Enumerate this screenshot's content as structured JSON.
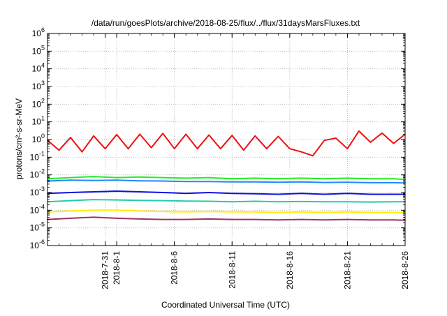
{
  "chart_data": {
    "type": "line",
    "title": "/data/run/goesPlots/archive/2018-08-25/flux/../flux/31daysMarsFluxes.txt",
    "xlabel": "Coordinated Universal Time (UTC)",
    "ylabel": "protons/cm²-s-sr-MeV",
    "y_scale": "log",
    "ylim": [
      1e-06,
      1000000.0
    ],
    "xlim": [
      "2018-07-26",
      "2018-08-26"
    ],
    "grid": true,
    "y_ticks": [
      {
        "base": "10",
        "exp": "-6"
      },
      {
        "base": "10",
        "exp": "-5"
      },
      {
        "base": "10",
        "exp": "-4"
      },
      {
        "base": "10",
        "exp": "-3"
      },
      {
        "base": "10",
        "exp": "-2"
      },
      {
        "base": "10",
        "exp": "-1"
      },
      {
        "base": "10",
        "exp": "0"
      },
      {
        "base": "10",
        "exp": "1"
      },
      {
        "base": "10",
        "exp": "2"
      },
      {
        "base": "10",
        "exp": "3"
      },
      {
        "base": "10",
        "exp": "4"
      },
      {
        "base": "10",
        "exp": "5"
      },
      {
        "base": "10",
        "exp": "6"
      }
    ],
    "x_ticks": [
      {
        "date": "2018-07-31",
        "label": "2018-7-31"
      },
      {
        "date": "2018-08-01",
        "label": "2018-8-1"
      },
      {
        "date": "2018-08-06",
        "label": "2018-8-6"
      },
      {
        "date": "2018-08-11",
        "label": "2018-8-11"
      },
      {
        "date": "2018-08-16",
        "label": "2018-8-16"
      },
      {
        "date": "2018-08-21",
        "label": "2018-8-21"
      },
      {
        "date": "2018-08-26",
        "label": "2018-8-26"
      }
    ],
    "series": [
      {
        "color": "#ee1111",
        "x": [
          "2018-07-26",
          "2018-07-27",
          "2018-07-28",
          "2018-07-29",
          "2018-07-30",
          "2018-07-31",
          "2018-08-01",
          "2018-08-02",
          "2018-08-03",
          "2018-08-04",
          "2018-08-05",
          "2018-08-06",
          "2018-08-07",
          "2018-08-08",
          "2018-08-09",
          "2018-08-10",
          "2018-08-11",
          "2018-08-12",
          "2018-08-13",
          "2018-08-14",
          "2018-08-15",
          "2018-08-16",
          "2018-08-17",
          "2018-08-18",
          "2018-08-19",
          "2018-08-20",
          "2018-08-21",
          "2018-08-22",
          "2018-08-23",
          "2018-08-24",
          "2018-08-25",
          "2018-08-26"
        ],
        "values": [
          0.9,
          0.25,
          1.3,
          0.2,
          1.6,
          0.3,
          1.9,
          0.3,
          2.0,
          0.35,
          2.2,
          0.3,
          2.0,
          0.3,
          1.8,
          0.3,
          1.7,
          0.25,
          1.6,
          0.3,
          1.5,
          0.3,
          0.2,
          0.12,
          0.9,
          1.2,
          0.3,
          3.0,
          0.7,
          2.3,
          0.6,
          2.0
        ]
      },
      {
        "color": "#22ee22",
        "x": [
          "2018-07-26",
          "2018-07-28",
          "2018-07-30",
          "2018-08-01",
          "2018-08-03",
          "2018-08-05",
          "2018-08-07",
          "2018-08-09",
          "2018-08-11",
          "2018-08-13",
          "2018-08-15",
          "2018-08-17",
          "2018-08-19",
          "2018-08-21",
          "2018-08-23",
          "2018-08-25",
          "2018-08-26"
        ],
        "values": [
          0.006,
          0.007,
          0.008,
          0.007,
          0.0075,
          0.007,
          0.0065,
          0.007,
          0.006,
          0.0065,
          0.006,
          0.0065,
          0.006,
          0.0065,
          0.006,
          0.006,
          0.0055
        ]
      },
      {
        "color": "#1e88ff",
        "x": [
          "2018-07-26",
          "2018-07-28",
          "2018-07-30",
          "2018-08-01",
          "2018-08-03",
          "2018-08-05",
          "2018-08-07",
          "2018-08-09",
          "2018-08-11",
          "2018-08-13",
          "2018-08-15",
          "2018-08-17",
          "2018-08-19",
          "2018-08-21",
          "2018-08-23",
          "2018-08-25",
          "2018-08-26"
        ],
        "values": [
          0.0045,
          0.005,
          0.0048,
          0.005,
          0.0046,
          0.0045,
          0.0042,
          0.0042,
          0.004,
          0.004,
          0.0038,
          0.004,
          0.0037,
          0.0038,
          0.0036,
          0.0036,
          0.0035
        ]
      },
      {
        "color": "#1111dd",
        "x": [
          "2018-07-26",
          "2018-07-28",
          "2018-07-30",
          "2018-08-01",
          "2018-08-03",
          "2018-08-05",
          "2018-08-07",
          "2018-08-09",
          "2018-08-11",
          "2018-08-13",
          "2018-08-15",
          "2018-08-17",
          "2018-08-19",
          "2018-08-21",
          "2018-08-23",
          "2018-08-25",
          "2018-08-26"
        ],
        "values": [
          0.0009,
          0.001,
          0.0011,
          0.0012,
          0.0011,
          0.001,
          0.0009,
          0.001,
          0.0009,
          0.00085,
          0.0008,
          0.0009,
          0.0008,
          0.0009,
          0.0008,
          0.0008,
          0.0008
        ]
      },
      {
        "color": "#22ccaa",
        "x": [
          "2018-07-26",
          "2018-07-28",
          "2018-07-30",
          "2018-08-01",
          "2018-08-03",
          "2018-08-05",
          "2018-08-07",
          "2018-08-09",
          "2018-08-11",
          "2018-08-13",
          "2018-08-15",
          "2018-08-17",
          "2018-08-19",
          "2018-08-21",
          "2018-08-23",
          "2018-08-25",
          "2018-08-26"
        ],
        "values": [
          0.0003,
          0.00035,
          0.0004,
          0.00038,
          0.00036,
          0.00035,
          0.00033,
          0.00032,
          0.0003,
          0.00032,
          0.0003,
          0.00031,
          0.0003,
          0.0003,
          0.00029,
          0.0003,
          0.0003
        ]
      },
      {
        "color": "#ffee00",
        "x": [
          "2018-07-26",
          "2018-07-28",
          "2018-07-30",
          "2018-08-01",
          "2018-08-03",
          "2018-08-05",
          "2018-08-07",
          "2018-08-09",
          "2018-08-11",
          "2018-08-13",
          "2018-08-15",
          "2018-08-17",
          "2018-08-19",
          "2018-08-21",
          "2018-08-23",
          "2018-08-25",
          "2018-08-26"
        ],
        "values": [
          8e-05,
          9e-05,
          0.0001,
          0.0001,
          9e-05,
          8.5e-05,
          8e-05,
          8.5e-05,
          8e-05,
          8e-05,
          7.5e-05,
          8e-05,
          7.5e-05,
          8e-05,
          7.5e-05,
          7.5e-05,
          7e-05
        ]
      },
      {
        "color": "#993366",
        "x": [
          "2018-07-26",
          "2018-07-28",
          "2018-07-30",
          "2018-08-01",
          "2018-08-03",
          "2018-08-05",
          "2018-08-07",
          "2018-08-09",
          "2018-08-11",
          "2018-08-13",
          "2018-08-15",
          "2018-08-17",
          "2018-08-19",
          "2018-08-21",
          "2018-08-23",
          "2018-08-25",
          "2018-08-26"
        ],
        "values": [
          3e-05,
          3.5e-05,
          4e-05,
          3.5e-05,
          3.2e-05,
          3e-05,
          3e-05,
          3.2e-05,
          3e-05,
          3e-05,
          2.8e-05,
          3e-05,
          2.8e-05,
          3e-05,
          2.8e-05,
          2.8e-05,
          2.7e-05
        ]
      }
    ]
  }
}
